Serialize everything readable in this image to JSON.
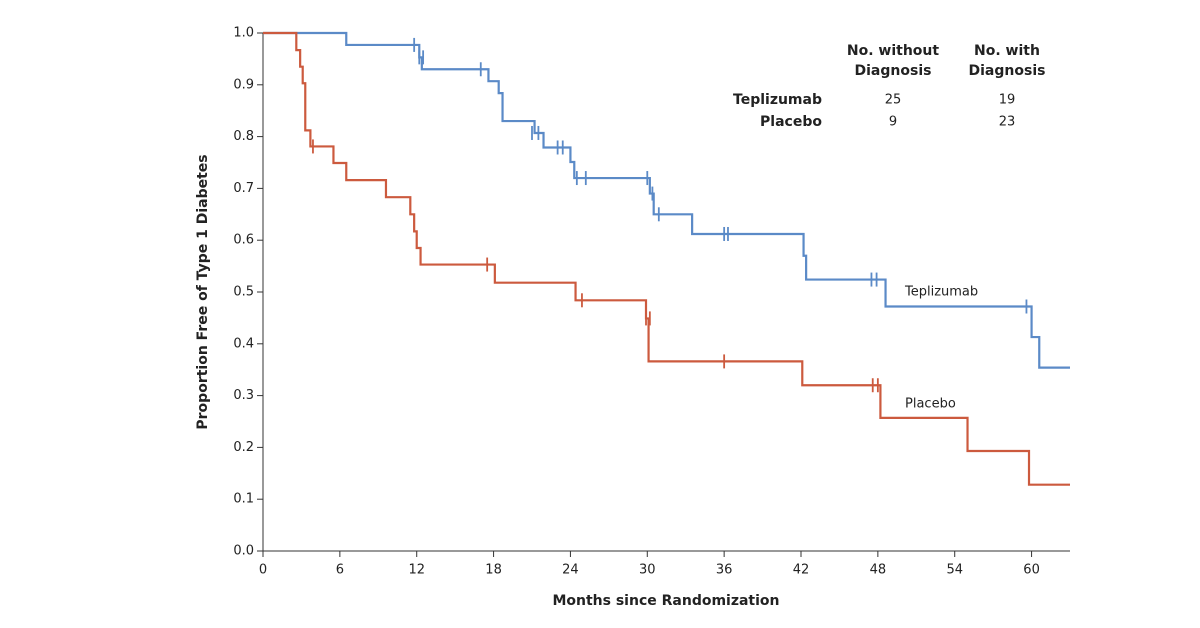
{
  "chart_data": {
    "type": "step",
    "x_label": "Months since Randomization",
    "y_label": "Proportion Free of Type 1 Diabetes",
    "xlim": [
      0,
      63
    ],
    "ylim": [
      0,
      1
    ],
    "xticks": [
      0,
      6,
      12,
      18,
      24,
      30,
      36,
      42,
      48,
      54,
      60
    ],
    "yticks": [
      {
        "value": 0,
        "label": "0.0"
      },
      0.1,
      0.2,
      0.3,
      0.4,
      0.5,
      0.6,
      0.7,
      0.8,
      0.9,
      {
        "value": 1,
        "label": "1.0"
      }
    ],
    "series": [
      {
        "name": "Teplizumab",
        "color": "#5b8ac7",
        "x": [
          0,
          6.5,
          12.2,
          12.4,
          17.6,
          18.4,
          18.7,
          21.2,
          21.9,
          24.0,
          24.3,
          30.2,
          30.5,
          33.5,
          42.2,
          42.4,
          48.6,
          60.0,
          60.6
        ],
        "values": [
          1.0,
          0.977,
          0.953,
          0.93,
          0.907,
          0.884,
          0.83,
          0.807,
          0.779,
          0.751,
          0.72,
          0.69,
          0.65,
          0.612,
          0.57,
          0.524,
          0.472,
          0.413,
          0.354
        ],
        "censored": {
          "x": [
            11.8,
            12.2,
            12.5,
            17.0,
            21.0,
            21.5,
            23.0,
            23.4,
            24.5,
            25.2,
            30.0,
            30.4,
            30.9,
            36.0,
            36.3,
            47.5,
            47.9,
            59.6
          ],
          "values": [
            0.977,
            0.953,
            0.953,
            0.93,
            0.807,
            0.807,
            0.779,
            0.779,
            0.72,
            0.72,
            0.72,
            0.69,
            0.65,
            0.612,
            0.612,
            0.524,
            0.524,
            0.472
          ]
        }
      },
      {
        "name": "Placebo",
        "color": "#cc5a3e",
        "x": [
          0,
          2.6,
          2.9,
          3.1,
          3.3,
          3.7,
          5.5,
          6.5,
          9.6,
          11.5,
          11.8,
          12.0,
          12.3,
          18.1,
          24.4,
          29.9,
          30.1,
          42.1,
          48.2,
          55.0,
          59.8
        ],
        "values": [
          1.0,
          0.967,
          0.935,
          0.903,
          0.812,
          0.781,
          0.749,
          0.716,
          0.683,
          0.65,
          0.617,
          0.585,
          0.553,
          0.518,
          0.484,
          0.449,
          0.366,
          0.32,
          0.257,
          0.193,
          0.128
        ],
        "censored": {
          "x": [
            3.9,
            17.5,
            24.9,
            29.9,
            30.2,
            36.0,
            47.6,
            48.0
          ],
          "values": [
            0.781,
            0.553,
            0.484,
            0.449,
            0.449,
            0.366,
            0.32,
            0.32
          ]
        }
      }
    ],
    "table": {
      "columns": [
        [
          "No. without",
          "Diagnosis"
        ],
        [
          "No. with",
          "Diagnosis"
        ]
      ],
      "rows": [
        [
          "Teplizumab",
          25,
          19
        ],
        [
          "Placebo",
          9,
          23
        ]
      ]
    }
  }
}
